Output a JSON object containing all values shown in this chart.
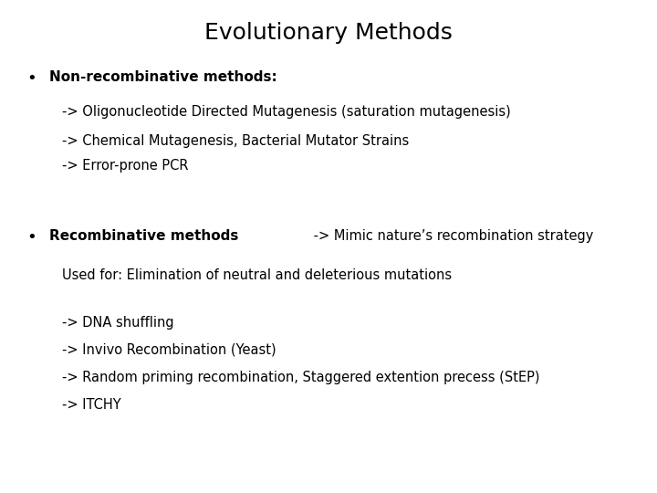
{
  "title": "Evolutionary Methods",
  "background_color": "#ffffff",
  "text_color": "#000000",
  "title_fontsize": 18,
  "body_fontsize": 11,
  "small_fontsize": 10.5,
  "bullet1_bold": "Non-recombinative methods:",
  "sub1_lines": [
    "-> Oligonucleotide Directed Mutagenesis (saturation mutagenesis)",
    "-> Chemical Mutagenesis, Bacterial Mutator Strains",
    "-> Error-prone PCR"
  ],
  "bullet2_bold": "Recombinative methods",
  "bullet2_suffix": " -> Mimic nature’s recombination strategy",
  "used_for_line": "Used for: Elimination of neutral and deleterious mutations",
  "sub2_lines": [
    "-> DNA shuffling",
    "-> Invivo Recombination (Yeast)",
    "-> Random priming recombination, Staggered extention precess (StEP)",
    "-> ITCHY"
  ],
  "bullet_char": "•"
}
